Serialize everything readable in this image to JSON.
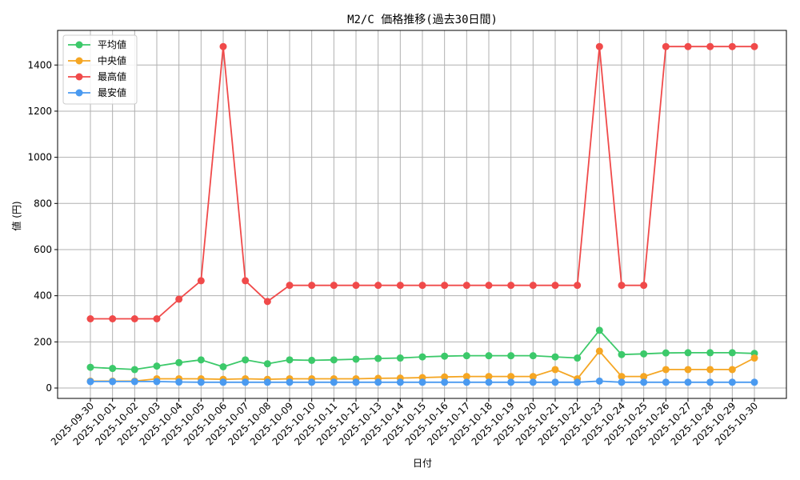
{
  "chart_data": {
    "type": "line",
    "title": "M2/C 価格推移(過去30日間)",
    "xlabel": "日付",
    "ylabel": "値 (円)",
    "ylim": [
      -45,
      1550
    ],
    "yticks": [
      0,
      200,
      400,
      600,
      800,
      1000,
      1200,
      1400
    ],
    "grid": true,
    "legend_position": "top-left",
    "categories": [
      "2025-09-30",
      "2025-10-01",
      "2025-10-02",
      "2025-10-03",
      "2025-10-04",
      "2025-10-05",
      "2025-10-06",
      "2025-10-07",
      "2025-10-08",
      "2025-10-09",
      "2025-10-10",
      "2025-10-11",
      "2025-10-12",
      "2025-10-13",
      "2025-10-14",
      "2025-10-15",
      "2025-10-16",
      "2025-10-17",
      "2025-10-18",
      "2025-10-19",
      "2025-10-20",
      "2025-10-21",
      "2025-10-22",
      "2025-10-23",
      "2025-10-24",
      "2025-10-25",
      "2025-10-26",
      "2025-10-27",
      "2025-10-28",
      "2025-10-29",
      "2025-10-30"
    ],
    "series": [
      {
        "name": "平均値",
        "color": "#3cc96a",
        "values": [
          90,
          85,
          80,
          95,
          110,
          122,
          92,
          122,
          105,
          122,
          120,
          122,
          125,
          128,
          130,
          135,
          138,
          140,
          140,
          140,
          140,
          135,
          130,
          250,
          145,
          148,
          152,
          153,
          153,
          153,
          150
        ]
      },
      {
        "name": "中央値",
        "color": "#f5a623",
        "values": [
          30,
          30,
          30,
          40,
          40,
          40,
          38,
          40,
          38,
          40,
          40,
          40,
          40,
          42,
          43,
          45,
          48,
          50,
          50,
          50,
          50,
          80,
          40,
          160,
          50,
          50,
          80,
          80,
          80,
          80,
          130
        ]
      },
      {
        "name": "最高値",
        "color": "#f04a4a",
        "values": [
          300,
          300,
          300,
          300,
          385,
          465,
          1480,
          465,
          375,
          445,
          445,
          445,
          445,
          445,
          445,
          445,
          445,
          445,
          445,
          445,
          445,
          445,
          445,
          1480,
          445,
          445,
          1480,
          1480,
          1480,
          1480,
          1480
        ]
      },
      {
        "name": "最安値",
        "color": "#4a9af0",
        "values": [
          28,
          28,
          28,
          28,
          26,
          25,
          25,
          25,
          25,
          25,
          25,
          25,
          25,
          25,
          25,
          25,
          25,
          25,
          25,
          25,
          25,
          25,
          25,
          30,
          25,
          25,
          25,
          25,
          25,
          25,
          25
        ]
      }
    ]
  }
}
